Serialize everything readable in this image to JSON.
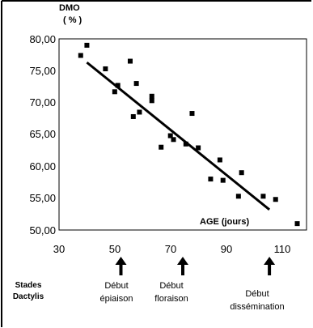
{
  "chart_data": {
    "type": "scatter",
    "ylabel_line1": "DMO",
    "ylabel_line2": "( % )",
    "xlabel": "AGE (jours)",
    "xlim": [
      30,
      110
    ],
    "ylim": [
      50,
      80
    ],
    "x_ticks": [
      "30",
      "50",
      "70",
      "90",
      "110"
    ],
    "y_ticks": [
      "50,00",
      "55,00",
      "60,00",
      "65,00",
      "70,00",
      "75,00",
      "80,00"
    ],
    "grid": false,
    "points": [
      {
        "x": 37,
        "y": 77.4
      },
      {
        "x": 39,
        "y": 79.0
      },
      {
        "x": 45,
        "y": 75.3
      },
      {
        "x": 48,
        "y": 71.7
      },
      {
        "x": 49,
        "y": 72.7
      },
      {
        "x": 53,
        "y": 76.5
      },
      {
        "x": 54,
        "y": 67.8
      },
      {
        "x": 55,
        "y": 73.0
      },
      {
        "x": 56,
        "y": 68.5
      },
      {
        "x": 60,
        "y": 70.3
      },
      {
        "x": 60,
        "y": 71.0
      },
      {
        "x": 63,
        "y": 63.0
      },
      {
        "x": 66,
        "y": 64.8
      },
      {
        "x": 67,
        "y": 64.2
      },
      {
        "x": 71,
        "y": 63.5
      },
      {
        "x": 73,
        "y": 68.3
      },
      {
        "x": 75,
        "y": 62.9
      },
      {
        "x": 79,
        "y": 58.0
      },
      {
        "x": 82,
        "y": 61.0
      },
      {
        "x": 83,
        "y": 57.8
      },
      {
        "x": 88,
        "y": 55.3
      },
      {
        "x": 89,
        "y": 59.0
      },
      {
        "x": 96,
        "y": 55.3
      },
      {
        "x": 100,
        "y": 54.8
      },
      {
        "x": 107,
        "y": 51.0
      }
    ],
    "trendline": {
      "x1": 39,
      "y1": 76.3,
      "x2": 98,
      "y2": 53.2
    },
    "stages_title_line1": "Stades",
    "stages_title_line2": "Dactylis",
    "stages": [
      {
        "x": 50,
        "line1": "Début",
        "line2": "épiaison"
      },
      {
        "x": 70,
        "line1": "Début",
        "line2": "floraison"
      },
      {
        "x": 98,
        "line1": "Début",
        "line2": "dissémination"
      }
    ]
  }
}
